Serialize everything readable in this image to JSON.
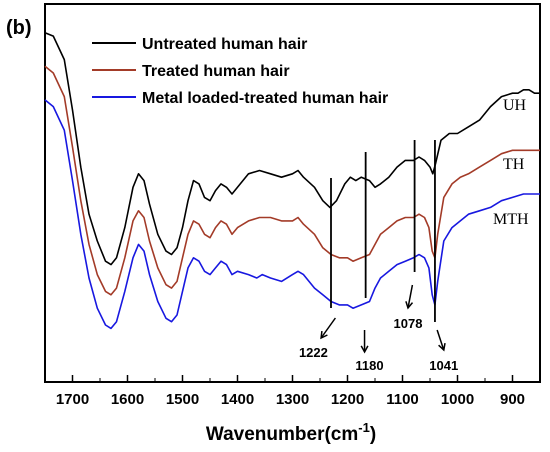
{
  "panel_label": "(b)",
  "colors": {
    "untreated": "#000000",
    "treated": "#a33b28",
    "metal_loaded": "#1818e0"
  },
  "chart_data": {
    "type": "line",
    "xlabel": "Wavenumber(cm",
    "xlabel_superscript": "-1",
    "xlabel_suffix": ")",
    "ylabel": "",
    "xlim": [
      1750,
      850
    ],
    "ylim": [
      0,
      100
    ],
    "x_reversed": true,
    "grid": false,
    "legend_position": "top-left",
    "x_ticks": [
      1700,
      1600,
      1500,
      1400,
      1300,
      1200,
      1100,
      1000,
      900
    ],
    "series": [
      {
        "name": "Untreated human hair",
        "label": "UH",
        "color": "#000000",
        "points": [
          [
            1750,
            98
          ],
          [
            1735,
            97
          ],
          [
            1715,
            90
          ],
          [
            1700,
            75
          ],
          [
            1685,
            58
          ],
          [
            1670,
            44
          ],
          [
            1655,
            36
          ],
          [
            1640,
            30
          ],
          [
            1630,
            29
          ],
          [
            1620,
            31
          ],
          [
            1605,
            40
          ],
          [
            1590,
            52
          ],
          [
            1580,
            56
          ],
          [
            1570,
            54
          ],
          [
            1560,
            47
          ],
          [
            1545,
            38
          ],
          [
            1530,
            33
          ],
          [
            1520,
            32
          ],
          [
            1510,
            34
          ],
          [
            1500,
            40
          ],
          [
            1490,
            48
          ],
          [
            1480,
            54
          ],
          [
            1470,
            53
          ],
          [
            1460,
            49
          ],
          [
            1450,
            48
          ],
          [
            1440,
            51
          ],
          [
            1430,
            53
          ],
          [
            1420,
            52
          ],
          [
            1410,
            50
          ],
          [
            1400,
            52
          ],
          [
            1380,
            56
          ],
          [
            1360,
            57
          ],
          [
            1340,
            56
          ],
          [
            1320,
            55
          ],
          [
            1300,
            56
          ],
          [
            1290,
            57
          ],
          [
            1280,
            55
          ],
          [
            1260,
            52
          ],
          [
            1245,
            48
          ],
          [
            1232,
            46
          ],
          [
            1220,
            48
          ],
          [
            1205,
            53
          ],
          [
            1195,
            55
          ],
          [
            1185,
            54
          ],
          [
            1175,
            55
          ],
          [
            1160,
            54
          ],
          [
            1150,
            52
          ],
          [
            1140,
            53
          ],
          [
            1125,
            55
          ],
          [
            1110,
            58
          ],
          [
            1095,
            60
          ],
          [
            1080,
            60
          ],
          [
            1070,
            61
          ],
          [
            1060,
            60
          ],
          [
            1050,
            58
          ],
          [
            1045,
            56
          ],
          [
            1040,
            59
          ],
          [
            1030,
            66
          ],
          [
            1015,
            68
          ],
          [
            1000,
            68
          ],
          [
            980,
            70
          ],
          [
            960,
            72
          ],
          [
            940,
            76
          ],
          [
            920,
            79
          ],
          [
            900,
            80
          ],
          [
            890,
            80
          ],
          [
            880,
            81
          ],
          [
            870,
            81
          ],
          [
            860,
            80
          ],
          [
            850,
            80
          ]
        ]
      },
      {
        "name": "Treated human hair",
        "label": "TH",
        "color": "#a33b28",
        "points": [
          [
            1750,
            88
          ],
          [
            1735,
            86
          ],
          [
            1715,
            79
          ],
          [
            1700,
            64
          ],
          [
            1685,
            48
          ],
          [
            1670,
            35
          ],
          [
            1655,
            26
          ],
          [
            1640,
            21
          ],
          [
            1630,
            20
          ],
          [
            1620,
            22
          ],
          [
            1605,
            31
          ],
          [
            1590,
            42
          ],
          [
            1580,
            45
          ],
          [
            1570,
            43
          ],
          [
            1560,
            36
          ],
          [
            1545,
            28
          ],
          [
            1530,
            23
          ],
          [
            1520,
            22
          ],
          [
            1510,
            24
          ],
          [
            1500,
            31
          ],
          [
            1490,
            38
          ],
          [
            1480,
            42
          ],
          [
            1470,
            41
          ],
          [
            1460,
            38
          ],
          [
            1450,
            37
          ],
          [
            1440,
            40
          ],
          [
            1430,
            42
          ],
          [
            1420,
            41
          ],
          [
            1410,
            38
          ],
          [
            1400,
            40
          ],
          [
            1380,
            42
          ],
          [
            1360,
            43
          ],
          [
            1340,
            43
          ],
          [
            1320,
            42
          ],
          [
            1300,
            42
          ],
          [
            1290,
            43
          ],
          [
            1280,
            41
          ],
          [
            1260,
            38
          ],
          [
            1245,
            34
          ],
          [
            1230,
            32
          ],
          [
            1215,
            31
          ],
          [
            1200,
            31
          ],
          [
            1190,
            30
          ],
          [
            1175,
            31
          ],
          [
            1160,
            32
          ],
          [
            1150,
            35
          ],
          [
            1140,
            38
          ],
          [
            1125,
            40
          ],
          [
            1110,
            42
          ],
          [
            1095,
            43
          ],
          [
            1080,
            43
          ],
          [
            1070,
            44
          ],
          [
            1060,
            43
          ],
          [
            1052,
            40
          ],
          [
            1046,
            33
          ],
          [
            1041,
            31
          ],
          [
            1036,
            38
          ],
          [
            1025,
            49
          ],
          [
            1010,
            53
          ],
          [
            995,
            55
          ],
          [
            980,
            56
          ],
          [
            960,
            58
          ],
          [
            940,
            60
          ],
          [
            920,
            62
          ],
          [
            900,
            63
          ],
          [
            880,
            63
          ],
          [
            860,
            63
          ],
          [
            850,
            63
          ]
        ]
      },
      {
        "name": "Metal loaded-treated human hair",
        "label": "MTH",
        "color": "#1818e0",
        "points": [
          [
            1750,
            78
          ],
          [
            1735,
            76
          ],
          [
            1715,
            69
          ],
          [
            1700,
            54
          ],
          [
            1685,
            38
          ],
          [
            1670,
            25
          ],
          [
            1655,
            16
          ],
          [
            1640,
            11
          ],
          [
            1630,
            10
          ],
          [
            1620,
            12
          ],
          [
            1605,
            21
          ],
          [
            1590,
            31
          ],
          [
            1580,
            35
          ],
          [
            1570,
            33
          ],
          [
            1560,
            26
          ],
          [
            1545,
            18
          ],
          [
            1530,
            13
          ],
          [
            1520,
            12
          ],
          [
            1510,
            14
          ],
          [
            1500,
            21
          ],
          [
            1490,
            28
          ],
          [
            1480,
            31
          ],
          [
            1470,
            30
          ],
          [
            1460,
            27
          ],
          [
            1450,
            26
          ],
          [
            1440,
            28
          ],
          [
            1430,
            30
          ],
          [
            1420,
            29
          ],
          [
            1410,
            26
          ],
          [
            1400,
            27
          ],
          [
            1380,
            26
          ],
          [
            1365,
            25
          ],
          [
            1355,
            26
          ],
          [
            1340,
            25
          ],
          [
            1320,
            24
          ],
          [
            1300,
            26
          ],
          [
            1290,
            27
          ],
          [
            1280,
            26
          ],
          [
            1260,
            22
          ],
          [
            1245,
            20
          ],
          [
            1230,
            18
          ],
          [
            1215,
            17
          ],
          [
            1200,
            17
          ],
          [
            1190,
            16
          ],
          [
            1175,
            17
          ],
          [
            1160,
            18
          ],
          [
            1150,
            22
          ],
          [
            1140,
            25
          ],
          [
            1125,
            27
          ],
          [
            1110,
            29
          ],
          [
            1095,
            30
          ],
          [
            1080,
            31
          ],
          [
            1070,
            32
          ],
          [
            1060,
            31
          ],
          [
            1052,
            28
          ],
          [
            1046,
            20
          ],
          [
            1041,
            17
          ],
          [
            1036,
            24
          ],
          [
            1025,
            36
          ],
          [
            1010,
            40
          ],
          [
            995,
            42
          ],
          [
            980,
            44
          ],
          [
            960,
            45
          ],
          [
            940,
            46
          ],
          [
            920,
            48
          ],
          [
            900,
            49
          ],
          [
            880,
            50
          ],
          [
            860,
            50
          ],
          [
            850,
            50
          ]
        ]
      }
    ],
    "peak_markers": [
      {
        "x": 1222,
        "label": "1222"
      },
      {
        "x": 1180,
        "label": "1180"
      },
      {
        "x": 1078,
        "label": "1078"
      },
      {
        "x": 1041,
        "label": "1041"
      }
    ]
  }
}
